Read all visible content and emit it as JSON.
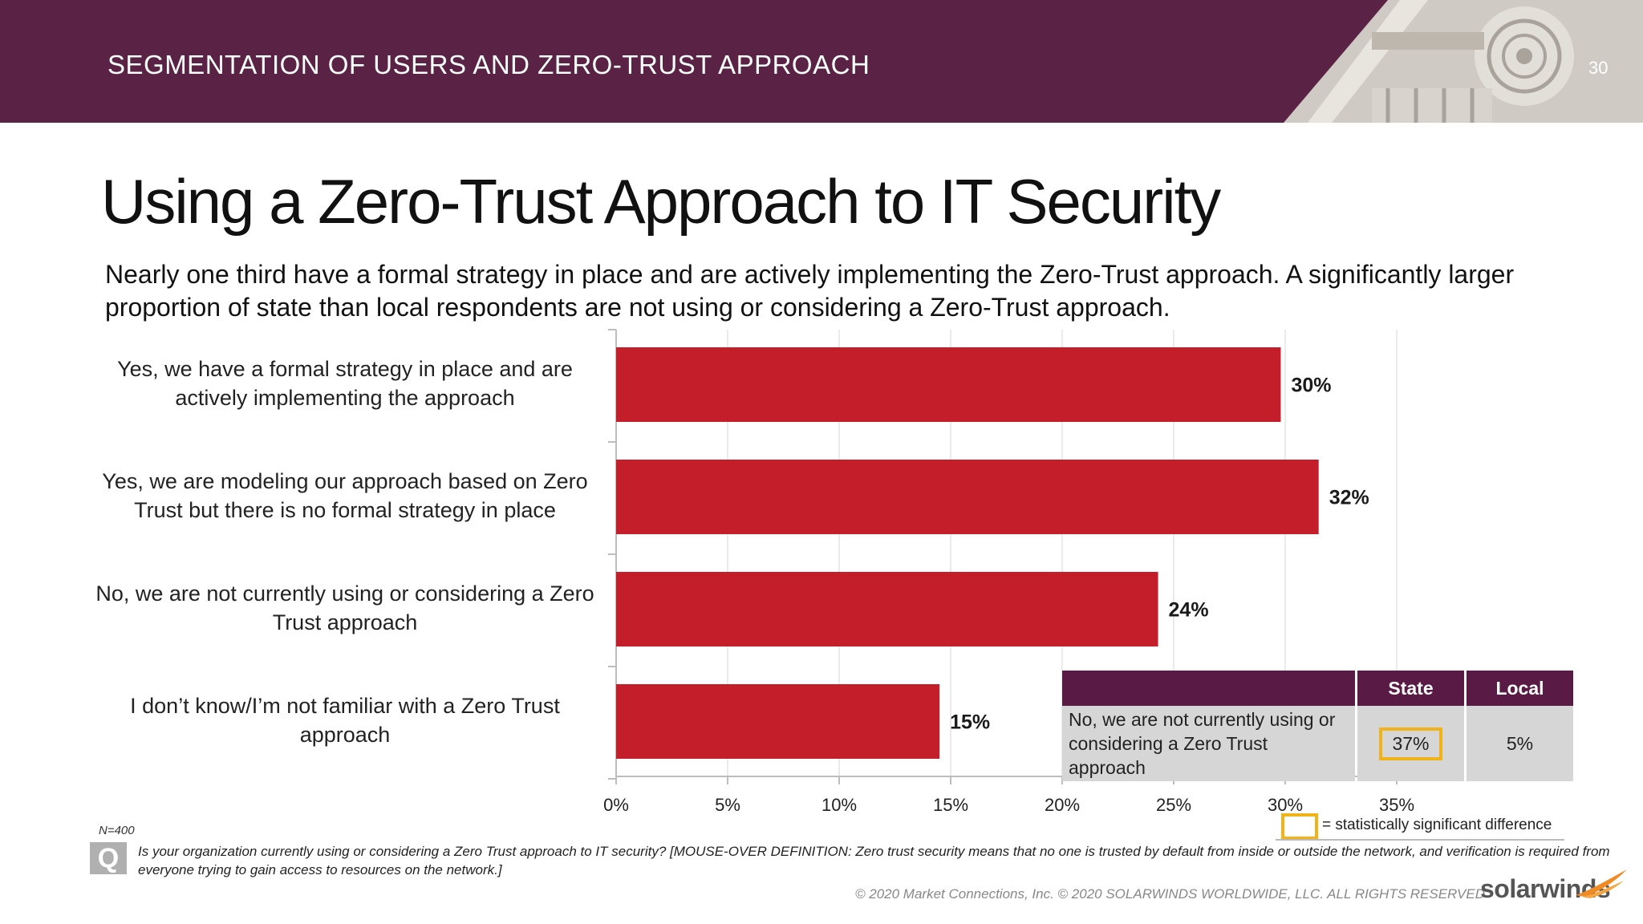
{
  "header": {
    "title": "SEGMENTATION OF USERS AND ZERO-TRUST APPROACH",
    "page_number": "30"
  },
  "main": {
    "title": "Using a Zero-Trust Approach to IT Security",
    "subtitle": "Nearly one third have a formal strategy in place and are actively implementing the Zero-Trust approach. A significantly larger proportion of state than local respondents are not using or considering a Zero-Trust approach."
  },
  "chart_data": {
    "type": "bar",
    "orientation": "horizontal",
    "categories": [
      "Yes, we have a formal strategy in place and are actively implementing the approach",
      "Yes, we are modeling our approach based on Zero Trust but there is no formal strategy in place",
      "No, we are not currently using or considering a Zero Trust approach",
      "I don’t know/I’m not familiar with a Zero Trust approach"
    ],
    "values": [
      29.8,
      31.5,
      24.3,
      14.5
    ],
    "data_labels": [
      "30%",
      "32%",
      "24%",
      "15%"
    ],
    "xlim": [
      0,
      35
    ],
    "xticks": [
      0,
      5,
      10,
      15,
      20,
      25,
      30,
      35
    ],
    "xtick_labels": [
      "0%",
      "5%",
      "10%",
      "15%",
      "20%",
      "25%",
      "30%",
      "35%"
    ],
    "grid": true,
    "bar_color": "#c41e2a"
  },
  "inset_table": {
    "headers": [
      "",
      "State",
      "Local"
    ],
    "row_label": "No, we are not currently using or considering a Zero Trust approach",
    "state_value": "37%",
    "local_value": "5%",
    "highlight_color": "#f2b318"
  },
  "legend": {
    "text": "= statistically significant difference"
  },
  "footer": {
    "base": "N=400",
    "q_icon": "Q",
    "question": "Is your organization currently using or considering a Zero Trust approach to IT security? [MOUSE-OVER DEFINITION: Zero trust security means that no one is trusted by default from inside or outside the network, and verification is required from everyone trying to gain access to resources on the network.]",
    "copyright": "© 2020 Market Connections, Inc. © 2020 SOLARWINDS WORLDWIDE, LLC. ALL RIGHTS RESERVED",
    "logo_text": "solarwinds"
  }
}
